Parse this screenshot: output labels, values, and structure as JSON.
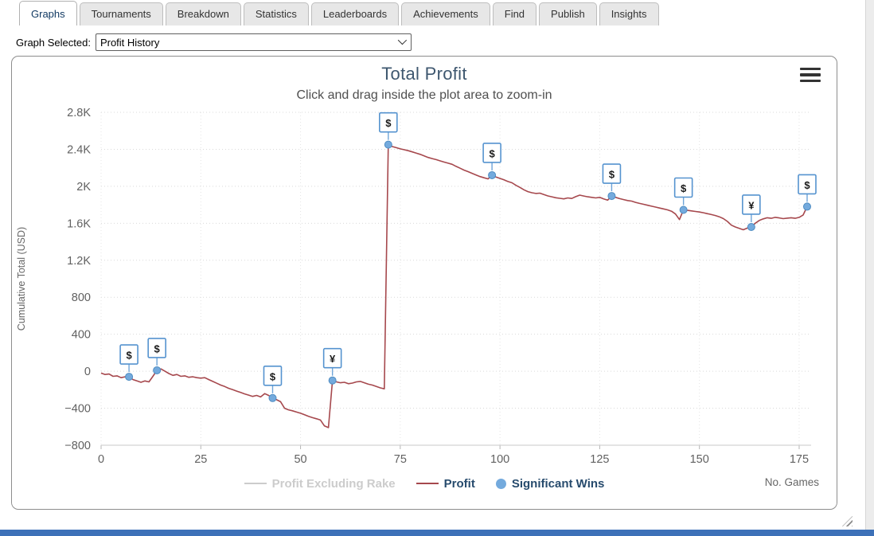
{
  "tabs": [
    {
      "label": "Graphs",
      "active": true
    },
    {
      "label": "Tournaments",
      "active": false
    },
    {
      "label": "Breakdown",
      "active": false
    },
    {
      "label": "Statistics",
      "active": false
    },
    {
      "label": "Leaderboards",
      "active": false
    },
    {
      "label": "Achievements",
      "active": false
    },
    {
      "label": "Find",
      "active": false
    },
    {
      "label": "Publish",
      "active": false
    },
    {
      "label": "Insights",
      "active": false
    }
  ],
  "controls": {
    "graph_selected_label": "Graph Selected:",
    "graph_selected_value": "Profit History",
    "dropdown_icon": "chevron-down-icon"
  },
  "chart": {
    "context_menu_icon": "hamburger-menu-icon"
  },
  "colors": {
    "profit_red": "#a6484d",
    "marker_blue": "#74aadd",
    "flag_border_blue": "#5593cf",
    "title_blue": "#3e576f",
    "legend_navy": "#274b6d",
    "disabled_gray": "#cccccc",
    "footer_bar_blue": "#3d71b8"
  },
  "chart_data": {
    "type": "line",
    "title": "Total Profit",
    "subtitle": "Click and drag inside the plot area to zoom-in",
    "xlabel": "No. Games",
    "ylabel": "Cumulative Total (USD)",
    "xlim": [
      0,
      178
    ],
    "ylim": [
      -800,
      2800
    ],
    "x_ticks": [
      0,
      25,
      50,
      75,
      100,
      125,
      150,
      175
    ],
    "y_ticks": [
      2800,
      2400,
      2000,
      1600,
      1200,
      800,
      400,
      0,
      -400,
      -800
    ],
    "y_tick_labels": [
      "2.8K",
      "2.4K",
      "2K",
      "1.6K",
      "1.2K",
      "800",
      "400",
      "0",
      "−400",
      "−800"
    ],
    "grid": "dotted",
    "legend_position": "bottom",
    "legend": [
      {
        "label": "Profit Excluding Rake",
        "color": "#cccccc",
        "marker": "line",
        "disabled": true
      },
      {
        "label": "Profit",
        "color": "#a6484d",
        "marker": "line",
        "disabled": false
      },
      {
        "label": "Significant Wins",
        "color": "#74aadd",
        "marker": "circle",
        "disabled": false
      }
    ],
    "series": [
      {
        "name": "Profit",
        "color": "#a6484d",
        "points": [
          [
            0,
            -20
          ],
          [
            1,
            -35
          ],
          [
            2,
            -30
          ],
          [
            3,
            -55
          ],
          [
            4,
            -50
          ],
          [
            5,
            -70
          ],
          [
            6,
            -60
          ],
          [
            7,
            -60
          ],
          [
            8,
            -90
          ],
          [
            9,
            -105
          ],
          [
            10,
            -120
          ],
          [
            11,
            -105
          ],
          [
            12,
            -115
          ],
          [
            13,
            -55
          ],
          [
            14,
            10
          ],
          [
            15,
            25
          ],
          [
            16,
            0
          ],
          [
            17,
            -25
          ],
          [
            18,
            -45
          ],
          [
            19,
            -35
          ],
          [
            20,
            -55
          ],
          [
            21,
            -50
          ],
          [
            22,
            -65
          ],
          [
            23,
            -60
          ],
          [
            24,
            -70
          ],
          [
            25,
            -75
          ],
          [
            26,
            -70
          ],
          [
            27,
            -90
          ],
          [
            28,
            -110
          ],
          [
            29,
            -130
          ],
          [
            30,
            -150
          ],
          [
            31,
            -165
          ],
          [
            32,
            -185
          ],
          [
            33,
            -200
          ],
          [
            34,
            -215
          ],
          [
            35,
            -230
          ],
          [
            36,
            -245
          ],
          [
            37,
            -258
          ],
          [
            38,
            -272
          ],
          [
            39,
            -262
          ],
          [
            40,
            -278
          ],
          [
            41,
            -242
          ],
          [
            42,
            -262
          ],
          [
            43,
            -290
          ],
          [
            44,
            -308
          ],
          [
            45,
            -330
          ],
          [
            46,
            -400
          ],
          [
            47,
            -418
          ],
          [
            48,
            -428
          ],
          [
            49,
            -442
          ],
          [
            50,
            -455
          ],
          [
            51,
            -470
          ],
          [
            52,
            -488
          ],
          [
            53,
            -502
          ],
          [
            54,
            -514
          ],
          [
            55,
            -528
          ],
          [
            56,
            -592
          ],
          [
            57,
            -610
          ],
          [
            58,
            -100
          ],
          [
            59,
            -115
          ],
          [
            60,
            -125
          ],
          [
            61,
            -120
          ],
          [
            62,
            -135
          ],
          [
            63,
            -128
          ],
          [
            64,
            -115
          ],
          [
            65,
            -110
          ],
          [
            66,
            -125
          ],
          [
            67,
            -140
          ],
          [
            68,
            -150
          ],
          [
            69,
            -165
          ],
          [
            70,
            -180
          ],
          [
            71,
            -190
          ],
          [
            72,
            2450
          ],
          [
            73,
            2430
          ],
          [
            74,
            2418
          ],
          [
            75,
            2405
          ],
          [
            76,
            2395
          ],
          [
            77,
            2385
          ],
          [
            78,
            2372
          ],
          [
            79,
            2358
          ],
          [
            80,
            2345
          ],
          [
            81,
            2328
          ],
          [
            82,
            2312
          ],
          [
            83,
            2300
          ],
          [
            84,
            2288
          ],
          [
            85,
            2275
          ],
          [
            86,
            2262
          ],
          [
            87,
            2250
          ],
          [
            88,
            2238
          ],
          [
            89,
            2215
          ],
          [
            90,
            2195
          ],
          [
            91,
            2175
          ],
          [
            92,
            2158
          ],
          [
            93,
            2140
          ],
          [
            94,
            2122
          ],
          [
            95,
            2105
          ],
          [
            96,
            2092
          ],
          [
            97,
            2080
          ],
          [
            98,
            2120
          ],
          [
            99,
            2100
          ],
          [
            100,
            2085
          ],
          [
            101,
            2070
          ],
          [
            102,
            2052
          ],
          [
            103,
            2038
          ],
          [
            104,
            2010
          ],
          [
            105,
            1988
          ],
          [
            106,
            1962
          ],
          [
            107,
            1942
          ],
          [
            108,
            1930
          ],
          [
            109,
            1922
          ],
          [
            110,
            1926
          ],
          [
            111,
            1910
          ],
          [
            112,
            1896
          ],
          [
            113,
            1886
          ],
          [
            114,
            1876
          ],
          [
            115,
            1870
          ],
          [
            116,
            1864
          ],
          [
            117,
            1874
          ],
          [
            118,
            1868
          ],
          [
            119,
            1888
          ],
          [
            120,
            1904
          ],
          [
            121,
            1895
          ],
          [
            122,
            1886
          ],
          [
            123,
            1880
          ],
          [
            124,
            1874
          ],
          [
            125,
            1880
          ],
          [
            126,
            1864
          ],
          [
            127,
            1850
          ],
          [
            128,
            1895
          ],
          [
            129,
            1880
          ],
          [
            130,
            1866
          ],
          [
            131,
            1856
          ],
          [
            132,
            1846
          ],
          [
            133,
            1840
          ],
          [
            134,
            1826
          ],
          [
            135,
            1815
          ],
          [
            136,
            1805
          ],
          [
            137,
            1795
          ],
          [
            138,
            1785
          ],
          [
            139,
            1775
          ],
          [
            140,
            1765
          ],
          [
            141,
            1755
          ],
          [
            142,
            1745
          ],
          [
            143,
            1730
          ],
          [
            144,
            1700
          ],
          [
            145,
            1640
          ],
          [
            146,
            1745
          ],
          [
            147,
            1740
          ],
          [
            148,
            1734
          ],
          [
            149,
            1728
          ],
          [
            150,
            1722
          ],
          [
            151,
            1714
          ],
          [
            152,
            1704
          ],
          [
            153,
            1694
          ],
          [
            154,
            1684
          ],
          [
            155,
            1670
          ],
          [
            156,
            1650
          ],
          [
            157,
            1620
          ],
          [
            158,
            1580
          ],
          [
            159,
            1560
          ],
          [
            160,
            1545
          ],
          [
            161,
            1530
          ],
          [
            162,
            1548
          ],
          [
            163,
            1560
          ],
          [
            164,
            1600
          ],
          [
            165,
            1630
          ],
          [
            166,
            1648
          ],
          [
            167,
            1660
          ],
          [
            168,
            1654
          ],
          [
            169,
            1664
          ],
          [
            170,
            1658
          ],
          [
            171,
            1650
          ],
          [
            172,
            1655
          ],
          [
            173,
            1660
          ],
          [
            174,
            1654
          ],
          [
            175,
            1664
          ],
          [
            176,
            1690
          ],
          [
            177,
            1780
          ]
        ]
      }
    ],
    "significant_wins": [
      {
        "x": 7,
        "y": -60,
        "symbol": "$"
      },
      {
        "x": 14,
        "y": 10,
        "symbol": "$"
      },
      {
        "x": 43,
        "y": -290,
        "symbol": "$"
      },
      {
        "x": 58,
        "y": -100,
        "symbol": "¥"
      },
      {
        "x": 72,
        "y": 2450,
        "symbol": "$"
      },
      {
        "x": 98,
        "y": 2120,
        "symbol": "$"
      },
      {
        "x": 128,
        "y": 1895,
        "symbol": "$"
      },
      {
        "x": 146,
        "y": 1745,
        "symbol": "$"
      },
      {
        "x": 163,
        "y": 1560,
        "symbol": "¥"
      },
      {
        "x": 177,
        "y": 1780,
        "symbol": "$"
      }
    ]
  }
}
